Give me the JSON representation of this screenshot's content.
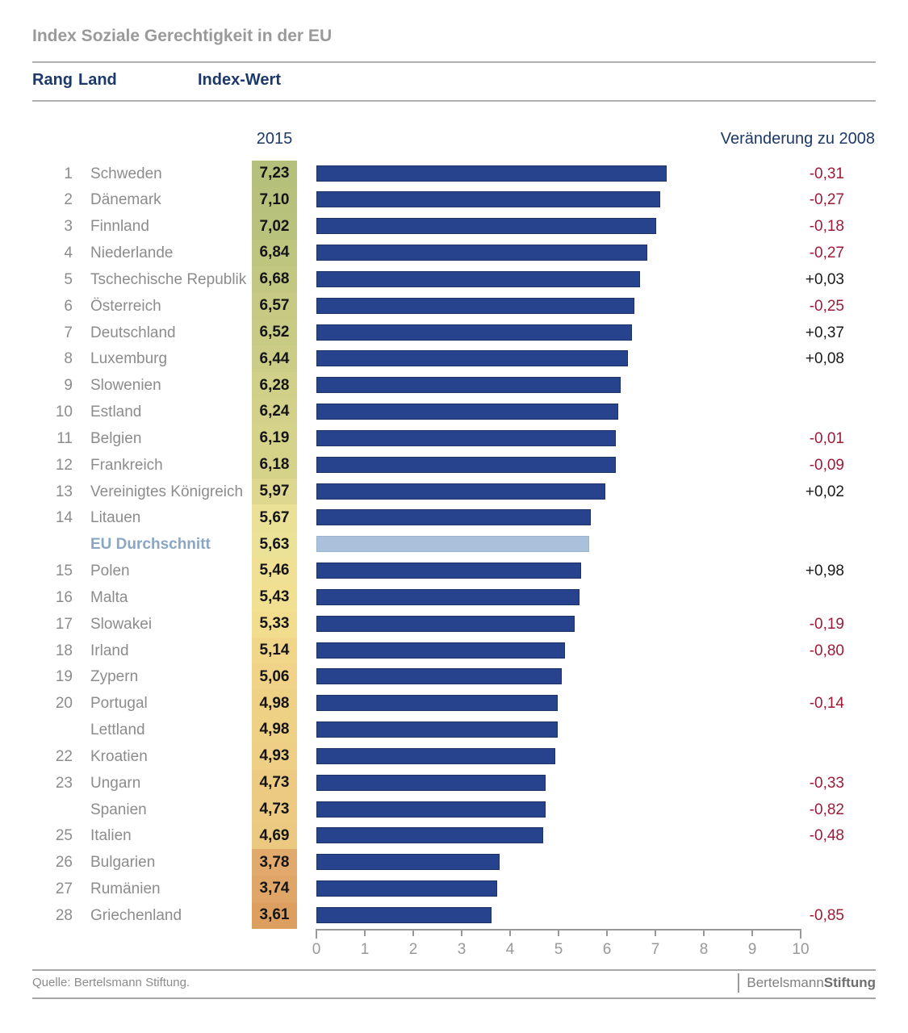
{
  "title": "Index Soziale Gerechtigkeit in der EU",
  "table_header": {
    "rank": "Rang",
    "country": "Land",
    "value": "Index-Wert"
  },
  "column_labels": {
    "year": "2015",
    "change": "Veränderung zu 2008"
  },
  "footer": {
    "source": "Quelle: Bertelsmann Stiftung.",
    "logo_regular": "Bertelsmann",
    "logo_bold": "Stiftung"
  },
  "colors": {
    "bar": "#27438e",
    "bar_border": "#1d3368",
    "eu_bar": "#a9c1da",
    "eu_text": "#8ba6c2",
    "negative_change": "#9c1b38",
    "positive_change": "#1a1a1a",
    "header_navy": "#1c3968",
    "title_gray": "#9a9a9a"
  },
  "chart_data": {
    "type": "bar",
    "title": "Index Soziale Gerechtigkeit in der EU",
    "xlabel": "Index-Wert",
    "xlim": [
      0,
      10
    ],
    "x_ticks": [
      0,
      1,
      2,
      3,
      4,
      5,
      6,
      7,
      8,
      9,
      10
    ],
    "legend": null,
    "grid": false,
    "rows": [
      {
        "rank": "1",
        "country": "Schweden",
        "value_label": "7,23",
        "value": 7.23,
        "change": "-0,31",
        "cell_color": "#b5c07a",
        "is_eu_average": false
      },
      {
        "rank": "2",
        "country": "Dänemark",
        "value_label": "7,10",
        "value": 7.1,
        "change": "-0,27",
        "cell_color": "#b7c17c",
        "is_eu_average": false
      },
      {
        "rank": "3",
        "country": "Finnland",
        "value_label": "7,02",
        "value": 7.02,
        "change": "-0,18",
        "cell_color": "#b9c27d",
        "is_eu_average": false
      },
      {
        "rank": "4",
        "country": "Niederlande",
        "value_label": "6,84",
        "value": 6.84,
        "change": "-0,27",
        "cell_color": "#bdc57f",
        "is_eu_average": false
      },
      {
        "rank": "5",
        "country": "Tschechische Republik",
        "value_label": "6,68",
        "value": 6.68,
        "change": "+0,03",
        "cell_color": "#c2c882",
        "is_eu_average": false
      },
      {
        "rank": "6",
        "country": "Österreich",
        "value_label": "6,57",
        "value": 6.57,
        "change": "-0,25",
        "cell_color": "#c6ca83",
        "is_eu_average": false
      },
      {
        "rank": "7",
        "country": "Deutschland",
        "value_label": "6,52",
        "value": 6.52,
        "change": "+0,37",
        "cell_color": "#c8cb84",
        "is_eu_average": false
      },
      {
        "rank": "8",
        "country": "Luxemburg",
        "value_label": "6,44",
        "value": 6.44,
        "change": "+0,08",
        "cell_color": "#cbcd86",
        "is_eu_average": false
      },
      {
        "rank": "9",
        "country": "Slowenien",
        "value_label": "6,28",
        "value": 6.28,
        "change": "",
        "cell_color": "#d1d088",
        "is_eu_average": false
      },
      {
        "rank": "10",
        "country": "Estland",
        "value_label": "6,24",
        "value": 6.24,
        "change": "",
        "cell_color": "#d3d189",
        "is_eu_average": false
      },
      {
        "rank": "11",
        "country": "Belgien",
        "value_label": "6,19",
        "value": 6.19,
        "change": "-0,01",
        "cell_color": "#d5d28a",
        "is_eu_average": false
      },
      {
        "rank": "12",
        "country": "Frankreich",
        "value_label": "6,18",
        "value": 6.18,
        "change": "-0,09",
        "cell_color": "#d5d28a",
        "is_eu_average": false
      },
      {
        "rank": "13",
        "country": "Vereinigtes Königreich",
        "value_label": "5,97",
        "value": 5.97,
        "change": "+0,02",
        "cell_color": "#ded790",
        "is_eu_average": false
      },
      {
        "rank": "14",
        "country": "Litauen",
        "value_label": "5,67",
        "value": 5.67,
        "change": "",
        "cell_color": "#eae096",
        "is_eu_average": false
      },
      {
        "rank": "",
        "country": "EU Durchschnitt",
        "value_label": "5,63",
        "value": 5.63,
        "change": "",
        "cell_color": "#ebe298",
        "is_eu_average": true
      },
      {
        "rank": "15",
        "country": "Polen",
        "value_label": "5,46",
        "value": 5.46,
        "change": "+0,98",
        "cell_color": "#f0e093",
        "is_eu_average": false
      },
      {
        "rank": "16",
        "country": "Malta",
        "value_label": "5,43",
        "value": 5.43,
        "change": "",
        "cell_color": "#f1df92",
        "is_eu_average": false
      },
      {
        "rank": "17",
        "country": "Slowakei",
        "value_label": "5,33",
        "value": 5.33,
        "change": "-0,19",
        "cell_color": "#f2dc8e",
        "is_eu_average": false
      },
      {
        "rank": "18",
        "country": "Irland",
        "value_label": "5,14",
        "value": 5.14,
        "change": "-0,80",
        "cell_color": "#f1d689",
        "is_eu_average": false
      },
      {
        "rank": "19",
        "country": "Zypern",
        "value_label": "5,06",
        "value": 5.06,
        "change": "",
        "cell_color": "#f0d388",
        "is_eu_average": false
      },
      {
        "rank": "20",
        "country": "Portugal",
        "value_label": "4,98",
        "value": 4.98,
        "change": "-0,14",
        "cell_color": "#efd186",
        "is_eu_average": false
      },
      {
        "rank": "",
        "country": "Lettland",
        "value_label": "4,98",
        "value": 4.98,
        "change": "",
        "cell_color": "#efd186",
        "is_eu_average": false
      },
      {
        "rank": "22",
        "country": "Kroatien",
        "value_label": "4,93",
        "value": 4.93,
        "change": "",
        "cell_color": "#eecf85",
        "is_eu_average": false
      },
      {
        "rank": "23",
        "country": "Ungarn",
        "value_label": "4,73",
        "value": 4.73,
        "change": "-0,33",
        "cell_color": "#ecca82",
        "is_eu_average": false
      },
      {
        "rank": "",
        "country": "Spanien",
        "value_label": "4,73",
        "value": 4.73,
        "change": "-0,82",
        "cell_color": "#ecca82",
        "is_eu_average": false
      },
      {
        "rank": "25",
        "country": "Italien",
        "value_label": "4,69",
        "value": 4.69,
        "change": "-0,48",
        "cell_color": "#ebc981",
        "is_eu_average": false
      },
      {
        "rank": "26",
        "country": "Bulgarien",
        "value_label": "3,78",
        "value": 3.78,
        "change": "",
        "cell_color": "#e1a96b",
        "is_eu_average": false
      },
      {
        "rank": "27",
        "country": "Rumänien",
        "value_label": "3,74",
        "value": 3.74,
        "change": "",
        "cell_color": "#e0a667",
        "is_eu_average": false
      },
      {
        "rank": "28",
        "country": "Griechenland",
        "value_label": "3,61",
        "value": 3.61,
        "change": "-0,85",
        "cell_color": "#dc9f60",
        "is_eu_average": false
      }
    ]
  }
}
